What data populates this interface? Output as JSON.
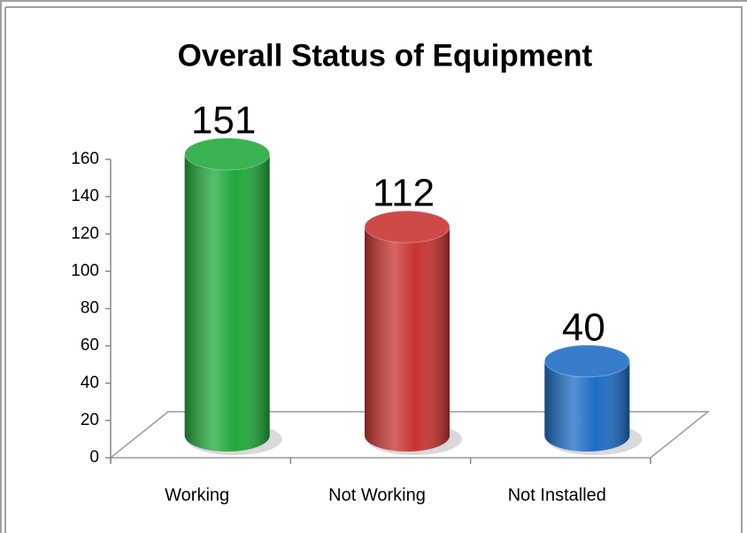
{
  "chart_data": {
    "type": "bar",
    "title": "Overall Status of Equipment",
    "categories": [
      "Working",
      "Not Working",
      "Not Installed"
    ],
    "values": [
      151,
      112,
      40
    ],
    "colors": [
      "#1fa83a",
      "#c8322f",
      "#1c6cc4"
    ],
    "ylim": [
      0,
      160
    ],
    "yticks": [
      0,
      20,
      40,
      60,
      80,
      100,
      120,
      140,
      160
    ],
    "grid": false
  }
}
